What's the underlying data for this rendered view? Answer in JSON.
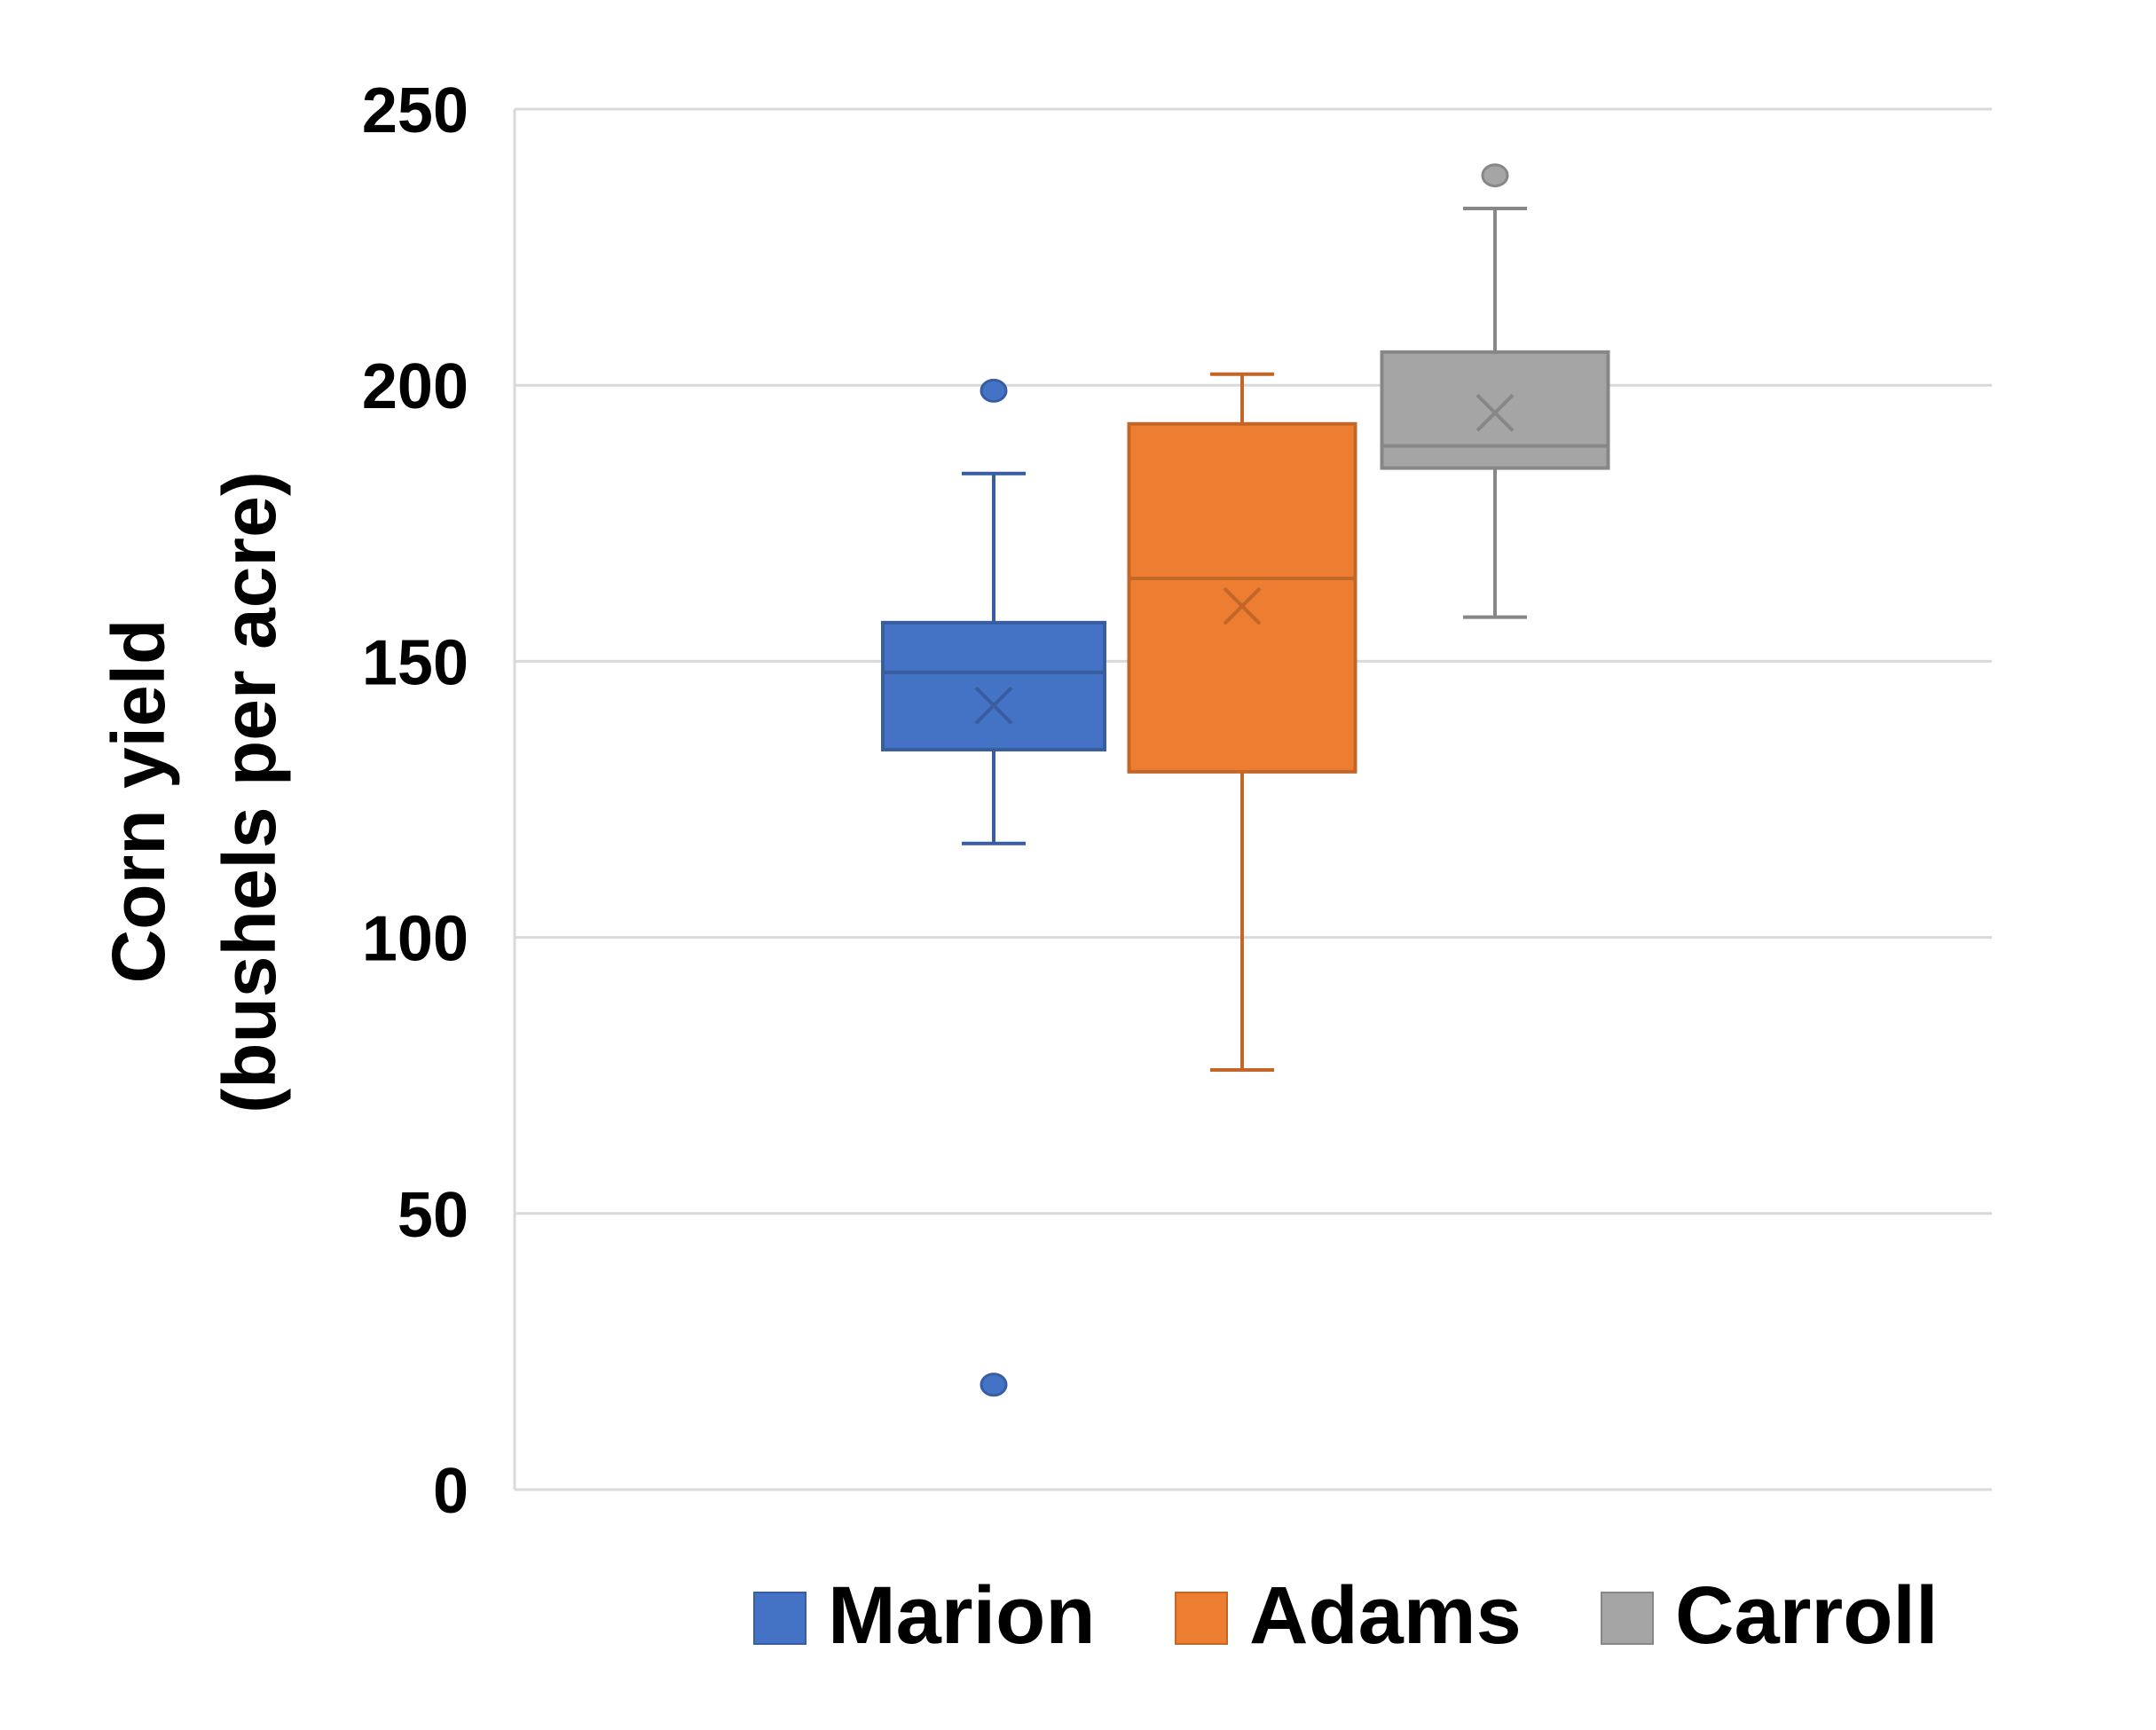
{
  "chart_data": {
    "type": "boxplot",
    "title": "",
    "xlabel": "",
    "ylabel_line1": "Corn yield",
    "ylabel_line2": "(bushels per acre)",
    "ylim": [
      0,
      250
    ],
    "yticks": [
      0,
      50,
      100,
      150,
      200,
      250
    ],
    "ytick_labels": [
      "0",
      "50",
      "100",
      "150",
      "200",
      "250"
    ],
    "grid": true,
    "legend_position": "bottom",
    "series": [
      {
        "name": "Marion",
        "color": "#4472C4",
        "whisker_low": 117,
        "q1": 134,
        "median": 148,
        "q3": 157,
        "whisker_high": 184,
        "mean": 142,
        "outliers": [
          199,
          19
        ]
      },
      {
        "name": "Adams",
        "color": "#ED7D31",
        "whisker_low": 76,
        "q1": 130,
        "median": 165,
        "q3": 193,
        "whisker_high": 202,
        "mean": 160,
        "outliers": []
      },
      {
        "name": "Carroll",
        "color": "#A5A5A5",
        "whisker_low": 158,
        "q1": 185,
        "median": 189,
        "q3": 206,
        "whisker_high": 232,
        "mean": 195,
        "outliers": [
          238
        ]
      }
    ]
  }
}
